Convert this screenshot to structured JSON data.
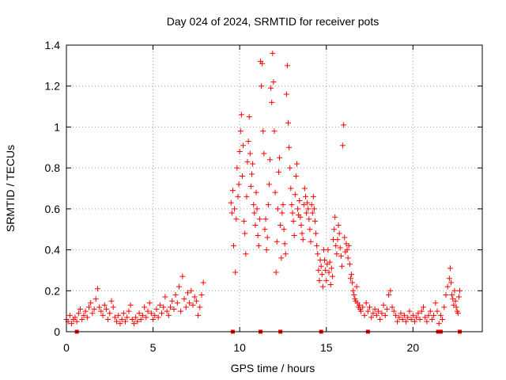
{
  "chart_data": {
    "type": "scatter",
    "title": "Day 024 of 2024, SRMTID for receiver pots",
    "xlabel": "GPS time / hours",
    "ylabel": "SRMTID / TECUs",
    "xlim": [
      0,
      24
    ],
    "ylim": [
      0,
      1.4
    ],
    "x_ticks": [
      {
        "value": 0,
        "label": "0"
      },
      {
        "value": 5,
        "label": "5"
      },
      {
        "value": 10,
        "label": "10"
      },
      {
        "value": 15,
        "label": "15"
      },
      {
        "value": 20,
        "label": "20"
      }
    ],
    "y_ticks": [
      {
        "value": 0,
        "label": "0"
      },
      {
        "value": 0.2,
        "label": "0.2"
      },
      {
        "value": 0.4,
        "label": "0.4"
      },
      {
        "value": 0.6,
        "label": "0.6"
      },
      {
        "value": 0.8,
        "label": "0.8"
      },
      {
        "value": 1.0,
        "label": "1"
      },
      {
        "value": 1.2,
        "label": "1.2"
      },
      {
        "value": 1.4,
        "label": "1.4"
      }
    ],
    "grid": true,
    "marker_color": "#ff0000",
    "series": [
      {
        "name": "SRMTID",
        "marker": "plus",
        "points": [
          [
            0.0,
            0.06
          ],
          [
            0.1,
            0.05
          ],
          [
            0.2,
            0.08
          ],
          [
            0.3,
            0.04
          ],
          [
            0.4,
            0.06
          ],
          [
            0.5,
            0.07
          ],
          [
            0.6,
            0.05
          ],
          [
            0.7,
            0.09
          ],
          [
            0.8,
            0.11
          ],
          [
            0.9,
            0.06
          ],
          [
            1.0,
            0.08
          ],
          [
            1.1,
            0.1
          ],
          [
            1.2,
            0.07
          ],
          [
            1.3,
            0.12
          ],
          [
            1.4,
            0.14
          ],
          [
            1.5,
            0.09
          ],
          [
            1.6,
            0.11
          ],
          [
            1.7,
            0.16
          ],
          [
            1.8,
            0.21
          ],
          [
            1.9,
            0.12
          ],
          [
            2.0,
            0.1
          ],
          [
            2.1,
            0.08
          ],
          [
            2.2,
            0.13
          ],
          [
            2.3,
            0.11
          ],
          [
            2.4,
            0.06
          ],
          [
            2.5,
            0.09
          ],
          [
            2.6,
            0.15
          ],
          [
            2.7,
            0.12
          ],
          [
            2.8,
            0.07
          ],
          [
            2.9,
            0.05
          ],
          [
            3.0,
            0.08
          ],
          [
            3.1,
            0.04
          ],
          [
            3.2,
            0.06
          ],
          [
            3.3,
            0.09
          ],
          [
            3.4,
            0.05
          ],
          [
            3.5,
            0.07
          ],
          [
            3.6,
            0.1
          ],
          [
            3.7,
            0.13
          ],
          [
            3.8,
            0.06
          ],
          [
            3.9,
            0.04
          ],
          [
            4.0,
            0.07
          ],
          [
            4.1,
            0.05
          ],
          [
            4.2,
            0.09
          ],
          [
            4.3,
            0.06
          ],
          [
            4.4,
            0.08
          ],
          [
            4.5,
            0.12
          ],
          [
            4.6,
            0.07
          ],
          [
            4.7,
            0.1
          ],
          [
            4.8,
            0.14
          ],
          [
            4.9,
            0.09
          ],
          [
            5.0,
            0.06
          ],
          [
            5.1,
            0.08
          ],
          [
            5.2,
            0.11
          ],
          [
            5.3,
            0.07
          ],
          [
            5.4,
            0.13
          ],
          [
            5.5,
            0.09
          ],
          [
            5.6,
            0.12
          ],
          [
            5.7,
            0.17
          ],
          [
            5.8,
            0.1
          ],
          [
            5.9,
            0.08
          ],
          [
            6.0,
            0.12
          ],
          [
            6.1,
            0.15
          ],
          [
            6.2,
            0.11
          ],
          [
            6.3,
            0.18
          ],
          [
            6.4,
            0.14
          ],
          [
            6.5,
            0.22
          ],
          [
            6.6,
            0.1
          ],
          [
            6.7,
            0.27
          ],
          [
            6.8,
            0.16
          ],
          [
            6.9,
            0.12
          ],
          [
            7.0,
            0.19
          ],
          [
            7.1,
            0.14
          ],
          [
            7.2,
            0.2
          ],
          [
            7.3,
            0.13
          ],
          [
            7.4,
            0.17
          ],
          [
            7.5,
            0.15
          ],
          [
            7.6,
            0.08
          ],
          [
            7.7,
            0.12
          ],
          [
            7.8,
            0.18
          ],
          [
            7.9,
            0.24
          ],
          [
            9.5,
            0.63
          ],
          [
            9.55,
            0.58
          ],
          [
            9.6,
            0.69
          ],
          [
            9.65,
            0.42
          ],
          [
            9.7,
            0.6
          ],
          [
            9.75,
            0.29
          ],
          [
            9.8,
            0.55
          ],
          [
            9.85,
            0.8
          ],
          [
            9.9,
            0.66
          ],
          [
            9.95,
            0.72
          ],
          [
            10.0,
            0.88
          ],
          [
            10.05,
            0.98
          ],
          [
            10.1,
            1.06
          ],
          [
            10.15,
            0.76
          ],
          [
            10.2,
            0.91
          ],
          [
            10.25,
            0.54
          ],
          [
            10.3,
            0.48
          ],
          [
            10.35,
            0.38
          ],
          [
            10.4,
            0.66
          ],
          [
            10.45,
            0.83
          ],
          [
            10.5,
            0.93
          ],
          [
            10.55,
            1.05
          ],
          [
            10.6,
            0.87
          ],
          [
            10.65,
            0.71
          ],
          [
            10.7,
            0.77
          ],
          [
            10.75,
            0.82
          ],
          [
            10.8,
            0.62
          ],
          [
            10.85,
            0.58
          ],
          [
            10.9,
            0.52
          ],
          [
            10.95,
            0.68
          ],
          [
            11.0,
            0.6
          ],
          [
            11.05,
            0.47
          ],
          [
            11.1,
            0.42
          ],
          [
            11.15,
            0.55
          ],
          [
            11.2,
            1.32
          ],
          [
            11.25,
            1.2
          ],
          [
            11.3,
            1.31
          ],
          [
            11.35,
            0.98
          ],
          [
            11.4,
            0.87
          ],
          [
            11.45,
            0.5
          ],
          [
            11.5,
            0.55
          ],
          [
            11.55,
            0.4
          ],
          [
            11.6,
            0.46
          ],
          [
            11.65,
            0.62
          ],
          [
            11.7,
            0.72
          ],
          [
            11.75,
            0.84
          ],
          [
            11.8,
            1.19
          ],
          [
            11.85,
            1.12
          ],
          [
            11.9,
            1.36
          ],
          [
            11.95,
            1.22
          ],
          [
            12.0,
            0.98
          ],
          [
            12.05,
            0.68
          ],
          [
            12.1,
            0.29
          ],
          [
            12.15,
            0.44
          ],
          [
            12.2,
            0.6
          ],
          [
            12.25,
            0.78
          ],
          [
            12.3,
            0.85
          ],
          [
            12.35,
            0.52
          ],
          [
            12.4,
            0.36
          ],
          [
            12.45,
            0.58
          ],
          [
            12.5,
            0.62
          ],
          [
            12.55,
            0.5
          ],
          [
            12.6,
            0.43
          ],
          [
            12.65,
            0.38
          ],
          [
            12.7,
            1.16
          ],
          [
            12.75,
            1.3
          ],
          [
            12.8,
            1.02
          ],
          [
            12.85,
            0.9
          ],
          [
            12.9,
            0.8
          ],
          [
            12.95,
            0.7
          ],
          [
            13.0,
            0.62
          ],
          [
            13.05,
            0.58
          ],
          [
            13.1,
            0.54
          ],
          [
            13.15,
            0.47
          ],
          [
            13.2,
            0.67
          ],
          [
            13.25,
            0.76
          ],
          [
            13.3,
            0.82
          ],
          [
            13.35,
            0.6
          ],
          [
            13.4,
            0.57
          ],
          [
            13.45,
            0.64
          ],
          [
            13.5,
            0.56
          ],
          [
            13.55,
            0.52
          ],
          [
            13.6,
            0.48
          ],
          [
            13.65,
            0.45
          ],
          [
            13.7,
            0.62
          ],
          [
            13.75,
            0.7
          ],
          [
            13.8,
            0.66
          ],
          [
            13.85,
            0.58
          ],
          [
            13.9,
            0.63
          ],
          [
            13.95,
            0.6
          ],
          [
            14.0,
            0.55
          ],
          [
            14.05,
            0.5
          ],
          [
            14.1,
            0.44
          ],
          [
            14.15,
            0.62
          ],
          [
            14.2,
            0.58
          ],
          [
            14.25,
            0.66
          ],
          [
            14.3,
            0.6
          ],
          [
            14.35,
            0.54
          ],
          [
            14.4,
            0.48
          ],
          [
            14.45,
            0.42
          ],
          [
            14.5,
            0.38
          ],
          [
            14.55,
            0.3
          ],
          [
            14.6,
            0.25
          ],
          [
            14.65,
            0.35
          ],
          [
            14.7,
            0.32
          ],
          [
            14.75,
            0.28
          ],
          [
            14.8,
            0.22
          ],
          [
            14.85,
            0.4
          ],
          [
            14.9,
            0.35
          ],
          [
            14.95,
            0.3
          ],
          [
            15.0,
            0.25
          ],
          [
            15.05,
            0.33
          ],
          [
            15.1,
            0.4
          ],
          [
            15.15,
            0.29
          ],
          [
            15.2,
            0.34
          ],
          [
            15.25,
            0.23
          ],
          [
            15.3,
            0.31
          ],
          [
            15.35,
            0.27
          ],
          [
            15.4,
            0.45
          ],
          [
            15.45,
            0.5
          ],
          [
            15.5,
            0.56
          ],
          [
            15.55,
            0.42
          ],
          [
            15.6,
            0.38
          ],
          [
            15.65,
            0.45
          ],
          [
            15.7,
            0.52
          ],
          [
            15.75,
            0.48
          ],
          [
            15.8,
            0.41
          ],
          [
            15.85,
            0.37
          ],
          [
            15.9,
            0.32
          ],
          [
            15.95,
            0.91
          ],
          [
            16.0,
            1.01
          ],
          [
            16.05,
            0.46
          ],
          [
            16.1,
            0.39
          ],
          [
            16.15,
            0.43
          ],
          [
            16.2,
            0.4
          ],
          [
            16.25,
            0.36
          ],
          [
            16.3,
            0.42
          ],
          [
            16.35,
            0.33
          ],
          [
            16.4,
            0.26
          ],
          [
            16.45,
            0.28
          ],
          [
            16.5,
            0.24
          ],
          [
            16.55,
            0.2
          ],
          [
            16.6,
            0.18
          ],
          [
            16.65,
            0.16
          ],
          [
            16.7,
            0.15
          ],
          [
            16.75,
            0.22
          ],
          [
            16.8,
            0.14
          ],
          [
            16.85,
            0.12
          ],
          [
            16.9,
            0.13
          ],
          [
            16.95,
            0.11
          ],
          [
            17.0,
            0.1
          ],
          [
            17.1,
            0.12
          ],
          [
            17.2,
            0.08
          ],
          [
            17.3,
            0.14
          ],
          [
            17.4,
            0.1
          ],
          [
            17.5,
            0.12
          ],
          [
            17.6,
            0.07
          ],
          [
            17.7,
            0.09
          ],
          [
            17.8,
            0.11
          ],
          [
            17.9,
            0.08
          ],
          [
            18.0,
            0.1
          ],
          [
            18.1,
            0.06
          ],
          [
            18.2,
            0.09
          ],
          [
            18.3,
            0.13
          ],
          [
            18.4,
            0.08
          ],
          [
            18.5,
            0.11
          ],
          [
            18.6,
            0.18
          ],
          [
            18.7,
            0.2
          ],
          [
            18.8,
            0.12
          ],
          [
            18.9,
            0.1
          ],
          [
            19.0,
            0.08
          ],
          [
            19.1,
            0.05
          ],
          [
            19.2,
            0.07
          ],
          [
            19.3,
            0.09
          ],
          [
            19.4,
            0.06
          ],
          [
            19.5,
            0.08
          ],
          [
            19.6,
            0.05
          ],
          [
            19.7,
            0.07
          ],
          [
            19.8,
            0.1
          ],
          [
            19.9,
            0.06
          ],
          [
            20.0,
            0.08
          ],
          [
            20.1,
            0.05
          ],
          [
            20.2,
            0.07
          ],
          [
            20.3,
            0.09
          ],
          [
            20.4,
            0.06
          ],
          [
            20.5,
            0.1
          ],
          [
            20.6,
            0.12
          ],
          [
            20.7,
            0.07
          ],
          [
            20.8,
            0.05
          ],
          [
            20.9,
            0.08
          ],
          [
            21.0,
            0.1
          ],
          [
            21.1,
            0.06
          ],
          [
            21.2,
            0.08
          ],
          [
            21.3,
            0.14
          ],
          [
            21.4,
            0.1
          ],
          [
            21.5,
            0.04
          ],
          [
            21.6,
            0.08
          ],
          [
            21.7,
            0.06
          ],
          [
            21.8,
            0.12
          ],
          [
            21.9,
            0.18
          ],
          [
            22.0,
            0.22
          ],
          [
            22.1,
            0.26
          ],
          [
            22.15,
            0.31
          ],
          [
            22.2,
            0.24
          ],
          [
            22.25,
            0.18
          ],
          [
            22.3,
            0.16
          ],
          [
            22.35,
            0.13
          ],
          [
            22.4,
            0.2
          ],
          [
            22.45,
            0.15
          ],
          [
            22.5,
            0.12
          ],
          [
            22.55,
            0.1
          ],
          [
            22.6,
            0.09
          ],
          [
            22.65,
            0.17
          ],
          [
            22.7,
            0.2
          ]
        ]
      },
      {
        "name": "baseline markers",
        "marker": "square",
        "points": [
          [
            0.6,
            0
          ],
          [
            9.6,
            0
          ],
          [
            11.2,
            0
          ],
          [
            12.35,
            0
          ],
          [
            14.7,
            0
          ],
          [
            17.4,
            0
          ],
          [
            21.45,
            0
          ],
          [
            21.6,
            0
          ],
          [
            22.7,
            0
          ]
        ]
      }
    ]
  }
}
